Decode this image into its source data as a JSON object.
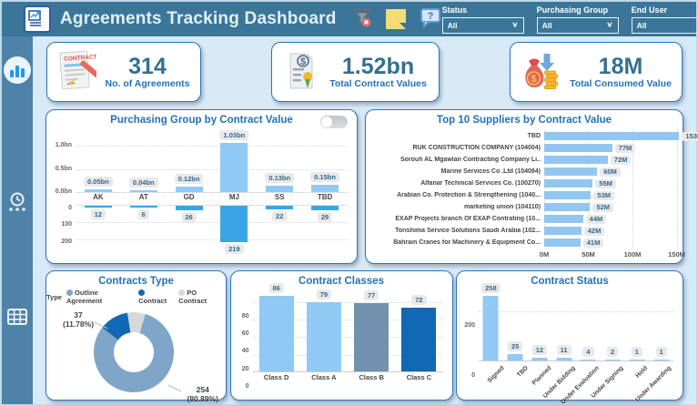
{
  "header": {
    "title": "Agreements Tracking Dashboard",
    "filters": [
      {
        "label": "Status",
        "value": "All"
      },
      {
        "label": "Purchasing Group",
        "value": "All"
      },
      {
        "label": "End User",
        "value": "All"
      }
    ]
  },
  "sidebar": {
    "items": [
      {
        "name": "dashboard-charts",
        "icon": "bar-chart-icon",
        "active": true
      },
      {
        "name": "history",
        "icon": "clock-timeline-icon",
        "active": false
      },
      {
        "name": "data-table",
        "icon": "grid-table-icon",
        "active": false
      }
    ]
  },
  "kpis": [
    {
      "value": "314",
      "label": "No. of Agreements",
      "icon": "contract-document-icon"
    },
    {
      "value": "1.52bn",
      "label": "Total Contract Values",
      "icon": "certified-document-icon"
    },
    {
      "value": "18M",
      "label": "Total Consumed Value",
      "icon": "money-bag-icon"
    }
  ],
  "colors": {
    "header_bg": "#3B7699",
    "sidebar_bg": "#4F82A8",
    "panel_border": "#2E75B6",
    "title_blue": "#2272B8",
    "bar_light": "#90C9F4",
    "bar_dark_count": "#3AA5E6",
    "bar_steel": "#7191AF",
    "bar_navy": "#1268B2",
    "donut_gray": "#D8D8D8",
    "donut_steel": "#7FA6C9"
  },
  "chart_data": [
    {
      "name": "purchasing_group",
      "type": "bar",
      "title": "Purchasing Group by Contract Value",
      "categories": [
        "AK",
        "AT",
        "GD",
        "MJ",
        "SS",
        "TBD"
      ],
      "series": [
        {
          "name": "Contract Value",
          "direction": "up",
          "values": [
            0.05,
            0.04,
            0.12,
            1.03,
            0.13,
            0.15
          ],
          "labels": [
            "0.05bn",
            "0.04bn",
            "0.12bn",
            "1.03bn",
            "0.13bn",
            "0.15bn"
          ]
        },
        {
          "name": "Count of Agreements",
          "direction": "down",
          "values": [
            12,
            6,
            26,
            219,
            22,
            29
          ],
          "labels": [
            "12",
            "6",
            "26",
            "219",
            "22",
            "29"
          ]
        }
      ],
      "y_axis_top": {
        "ticks": [
          "1.0bn",
          "0.5bn",
          "0.0bn"
        ],
        "range": [
          0,
          1.03
        ]
      },
      "y_axis_bottom": {
        "ticks": [
          "0",
          "100",
          "200"
        ],
        "range": [
          0,
          219
        ]
      },
      "toggle": "off"
    },
    {
      "name": "top_suppliers",
      "type": "bar-horizontal",
      "title": "Top 10 Suppliers by Contract Value",
      "categories": [
        "TBD",
        "RUK CONSTRUCTION COMPANY (104004)",
        "Sorouh AL Mgawlan Contracting Company Li..",
        "Marine Services Co .Ltd (104084)",
        "Alfanar Technical Services Co. (100270)",
        "Arabian Co. Protection & Strengthening (1040...",
        "marketing union (104110)",
        "EXAP Projects branch Of EXAP Contrating (10...",
        "Torishima Service Solutions Saudi Arabia (102...",
        "Bahrain Cranes for Machinery & Equipment Co..."
      ],
      "values": [
        153,
        77,
        72,
        60,
        55,
        53,
        52,
        44,
        42,
        41
      ],
      "labels": [
        "153M",
        "77M",
        "72M",
        "60M",
        "55M",
        "53M",
        "52M",
        "44M",
        "42M",
        "41M"
      ],
      "x_axis": {
        "ticks": [
          "0M",
          "50M",
          "100M",
          "150M"
        ],
        "range": [
          0,
          150
        ]
      }
    },
    {
      "name": "contracts_type",
      "type": "pie",
      "title": "Contracts Type",
      "legend_title": "Type",
      "slices": [
        {
          "label": "Outline Agreement",
          "value": 254,
          "pct": 80.89,
          "color": "#7FA6C9"
        },
        {
          "label": "Contract",
          "value": 37,
          "pct": 11.78,
          "color": "#1268B2"
        },
        {
          "label": "PO Contract",
          "pct": 7.33,
          "color": "#D8D8D8"
        }
      ],
      "callouts": [
        {
          "text": "37\n(11.78%)"
        },
        {
          "text": "254\n(80.89%)"
        }
      ]
    },
    {
      "name": "contract_classes",
      "type": "bar",
      "title": "Contract Classes",
      "categories": [
        "Class D",
        "Class A",
        "Class B",
        "Class C"
      ],
      "values": [
        86,
        79,
        77,
        72
      ],
      "labels": [
        "86",
        "79",
        "77",
        "72"
      ],
      "bar_colors": [
        "#90C9F4",
        "#90C9F4",
        "#7191AF",
        "#1268B2"
      ],
      "y_axis": {
        "ticks": [
          0,
          20,
          40,
          60,
          80
        ],
        "range": [
          0,
          95
        ]
      }
    },
    {
      "name": "contract_status",
      "type": "bar",
      "title": "Contract Status",
      "categories": [
        "Signed",
        "TBD",
        "Planned",
        "Under Bidding",
        "Under Evaluation",
        "Under Signing",
        "Hold",
        "Under Awarding"
      ],
      "values": [
        258,
        25,
        12,
        11,
        4,
        2,
        1,
        1
      ],
      "labels": [
        "258",
        "25",
        "12",
        "11",
        "4",
        "2",
        "1",
        "1"
      ],
      "y_axis": {
        "ticks": [
          0,
          200
        ],
        "range": [
          0,
          290
        ]
      }
    }
  ]
}
